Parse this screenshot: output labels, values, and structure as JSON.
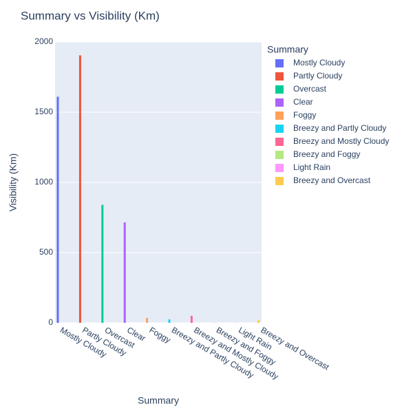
{
  "chart_data": {
    "type": "bar",
    "title": "Summary vs Visibility (Km)",
    "x_label": "Summary",
    "y_label": "Visibility (Km)",
    "legend_title": "Summary",
    "categories": [
      "Mostly Cloudy",
      "Partly Cloudy",
      "Overcast",
      "Clear",
      "Foggy",
      "Breezy and Partly Cloudy",
      "Breezy and Mostly Cloudy",
      "Breezy and Foggy",
      "Light Rain",
      "Breezy and Overcast"
    ],
    "values": [
      1610,
      1905,
      840,
      715,
      35,
      25,
      50,
      2,
      1,
      20
    ],
    "colors": [
      "#636efa",
      "#EF553B",
      "#00cc96",
      "#ab63fa",
      "#FFA15A",
      "#19d3f3",
      "#FF6692",
      "#B6E880",
      "#FF97FF",
      "#FECB52"
    ],
    "ylim": [
      0,
      2000
    ],
    "yticks": [
      0,
      500,
      1000,
      1500,
      2000
    ],
    "grid": true,
    "legend": "right"
  }
}
